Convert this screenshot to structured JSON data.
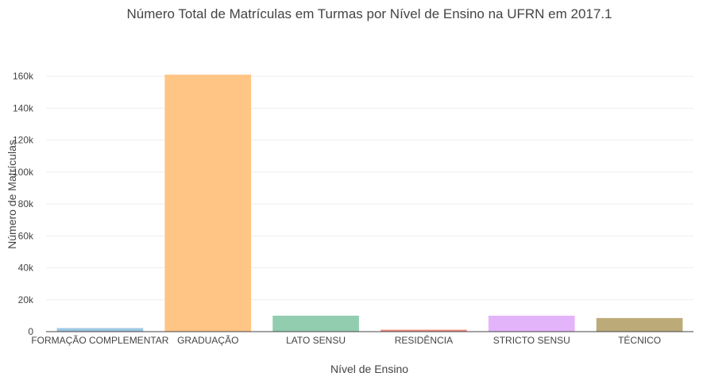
{
  "chart_data": {
    "type": "bar",
    "title": "Número Total de Matrículas em Turmas por Nível de Ensino na UFRN em 2017.1",
    "xlabel": "Nível de Ensino",
    "ylabel": "Número de Matrículas",
    "categories": [
      "FORMAÇÃO COMPLEMENTAR",
      "GRADUAÇÃO",
      "LATO SENSU",
      "RESIDÊNCIA",
      "STRICTO SENSU",
      "TÉCNICO"
    ],
    "values": [
      2200,
      161000,
      10000,
      1200,
      10000,
      8500
    ],
    "colors": [
      "#9ec5e2",
      "#ffc584",
      "#92cdb0",
      "#f08c80",
      "#e4b4fb",
      "#bcaa78"
    ],
    "ylim": [
      0,
      168000
    ],
    "yticks": [
      0,
      20000,
      40000,
      60000,
      80000,
      100000,
      120000,
      140000,
      160000
    ],
    "ytick_labels": [
      "0",
      "20k",
      "40k",
      "60k",
      "80k",
      "100k",
      "120k",
      "140k",
      "160k"
    ],
    "grid": true,
    "legend": "none"
  }
}
